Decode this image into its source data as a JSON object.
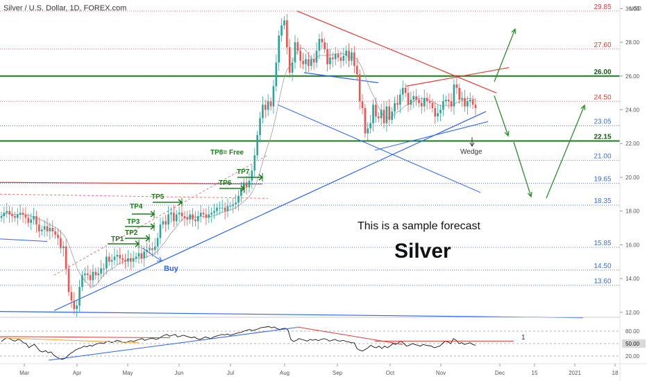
{
  "header": {
    "symbol_title": "Silver / U.S. Dollar, 1D, FOREX.com"
  },
  "colors": {
    "candle_up": "#26a69a",
    "candle_down": "#ef5350",
    "resistance_green": "#1b7a1b",
    "trend_blue": "#2962ff",
    "trend_red": "#e53935",
    "level_red_dotted": "#e57373",
    "level_blue_dotted": "#5b7fd6",
    "forecast_green": "#2e8b2e",
    "axis_text": "#555555"
  },
  "chart_data": [
    {
      "type": "candlestick",
      "title": "",
      "price_axis": {
        "unit_label": "USD",
        "ylim": [
          11.5,
          30.3
        ],
        "tick_labels": [
          "30.00",
          "28.00",
          "26.00",
          "24.00",
          "22.00",
          "20.00",
          "18.00",
          "16.00",
          "14.00",
          "12.00"
        ]
      },
      "time_axis": {
        "tick_labels": [
          "Mar",
          "Apr",
          "May",
          "Jun",
          "Jul",
          "Aug",
          "Sep",
          "Oct",
          "Nov",
          "Dec",
          "15",
          "2021",
          "18"
        ]
      },
      "price_series": {
        "name": "",
        "start_month": "Feb 2020",
        "closes": [
          17.7,
          17.9,
          18.0,
          17.8,
          17.7,
          17.6,
          17.8,
          17.9,
          17.8,
          17.6,
          17.3,
          17.5,
          17.7,
          17.2,
          16.8,
          16.9,
          17.1,
          16.8,
          17.0,
          16.8,
          16.6,
          16.4,
          15.8,
          15.9,
          14.6,
          13.2,
          12.7,
          12.2,
          12.4,
          13.5,
          14.2,
          14.3,
          14.2,
          13.9,
          14.4,
          14.2,
          14.3,
          14.6,
          14.6,
          15.3,
          15.0,
          15.1,
          15.3,
          15.4,
          15.2,
          15.1,
          15.0,
          15.2,
          15.0,
          15.2,
          15.3,
          15.5,
          15.2,
          15.6,
          15.7,
          15.8,
          15.7,
          15.9,
          16.4,
          17.2,
          17.4,
          17.2,
          17.8,
          17.9,
          17.4,
          17.8,
          17.9,
          17.7,
          17.6,
          17.5,
          17.8,
          17.5,
          17.4,
          17.7,
          17.9,
          17.8,
          17.6,
          17.8,
          17.9,
          18.0,
          18.2,
          18.2,
          18.2,
          18.0,
          18.3,
          18.3,
          18.4,
          18.5,
          18.9,
          19.3,
          19.7,
          19.4,
          19.8,
          20.4,
          21.3,
          22.5,
          23.5,
          24.3,
          24.0,
          24.5,
          24.2,
          25.4,
          26.8,
          28.4,
          29.0,
          29.3,
          27.7,
          26.2,
          26.8,
          28.0,
          27.5,
          26.9,
          26.7,
          27.0,
          26.6,
          27.0,
          26.8,
          27.5,
          28.2,
          28.0,
          27.6,
          26.7,
          27.1,
          27.0,
          27.3,
          27.1,
          26.9,
          27.2,
          27.5,
          26.9,
          27.4,
          26.6,
          26.1,
          24.5,
          24.1,
          22.6,
          22.9,
          23.2,
          24.3,
          23.6,
          23.5,
          24.0,
          23.2,
          24.2,
          23.4,
          23.9,
          24.4,
          24.3,
          24.9,
          25.3,
          25.0,
          24.3,
          24.6,
          24.8,
          24.6,
          24.4,
          24.2,
          24.7,
          24.5,
          24.4,
          24.1,
          23.6,
          23.8,
          24.0,
          24.5,
          24.6,
          24.5,
          24.2,
          25.5,
          25.3,
          24.6,
          24.7,
          24.2,
          24.5,
          24.6,
          24.3,
          24.1
        ],
        "moving_average_label": ""
      },
      "horizontal_levels": [
        {
          "value": 29.85,
          "label": "29.85",
          "style": "red-dotted"
        },
        {
          "value": 27.6,
          "label": "27.60",
          "style": "red-dotted"
        },
        {
          "value": 26.0,
          "label": "26.00",
          "style": "green-solid"
        },
        {
          "value": 24.5,
          "label": "24.50",
          "style": "red-dotted"
        },
        {
          "value": 23.05,
          "label": "23.05",
          "style": "blue-dotted"
        },
        {
          "value": 22.15,
          "label": "22.15",
          "style": "green-solid"
        },
        {
          "value": 21.0,
          "label": "21.00",
          "style": "blue-dotted"
        },
        {
          "value": 19.65,
          "label": "19.65",
          "style": "blue-dotted"
        },
        {
          "value": 18.35,
          "label": "18.35",
          "style": "blue-dotted"
        },
        {
          "value": 15.85,
          "label": "15.85",
          "style": "blue-dotted"
        },
        {
          "value": 14.5,
          "label": "14.50",
          "style": "blue-dotted"
        },
        {
          "value": 13.6,
          "label": "13.60",
          "style": "blue-dotted"
        }
      ],
      "annotations": {
        "take_profits": [
          "TP1",
          "TP2",
          "TP3",
          "TP4",
          "TP5",
          "TP6",
          "TP7",
          "TP8= Free"
        ],
        "buy_label": "Buy",
        "pattern_label": "Wedge",
        "sample_text": "This is a sample forecast",
        "asset_title": "Silver"
      },
      "oscillator": {
        "tick_labels": [
          "80.00",
          "50.00",
          "20.00"
        ],
        "current_value_label": "50.00",
        "marker_label": "1",
        "values": [
          55,
          60,
          64,
          62,
          58,
          56,
          60,
          58,
          52,
          50,
          40,
          45,
          48,
          40,
          32,
          30,
          33,
          28,
          30,
          22,
          18,
          14,
          12,
          14,
          20,
          26,
          30,
          35,
          38,
          40,
          44,
          42,
          46,
          44,
          48,
          50,
          52,
          50,
          54,
          56,
          52,
          55,
          58,
          56,
          53,
          52,
          55,
          57,
          55,
          58,
          60,
          62,
          58,
          60,
          62,
          63,
          60,
          62,
          66,
          70,
          72,
          68,
          70,
          72,
          66,
          68,
          70,
          68,
          66,
          64,
          66,
          62,
          60,
          63,
          66,
          64,
          62,
          66,
          68,
          70,
          72,
          71,
          73,
          70,
          72,
          74,
          76,
          77,
          80,
          82,
          84,
          81,
          83,
          85,
          88,
          89,
          90,
          91,
          88,
          90,
          86,
          84,
          86,
          87,
          82,
          60,
          55,
          58,
          62,
          60,
          58,
          56,
          60,
          58,
          60,
          57,
          60,
          62,
          60,
          56,
          58,
          60,
          57,
          56,
          58,
          55,
          54,
          52,
          52,
          38,
          34,
          32,
          36,
          40,
          46,
          42,
          40,
          44,
          38,
          44,
          40,
          44,
          50,
          48,
          52,
          56,
          50,
          44,
          46,
          50,
          48,
          46,
          44,
          48,
          46,
          45,
          44,
          40,
          42,
          44,
          50,
          56,
          54,
          50,
          62,
          58,
          50,
          52,
          48,
          50,
          52,
          48,
          46
        ]
      }
    }
  ]
}
